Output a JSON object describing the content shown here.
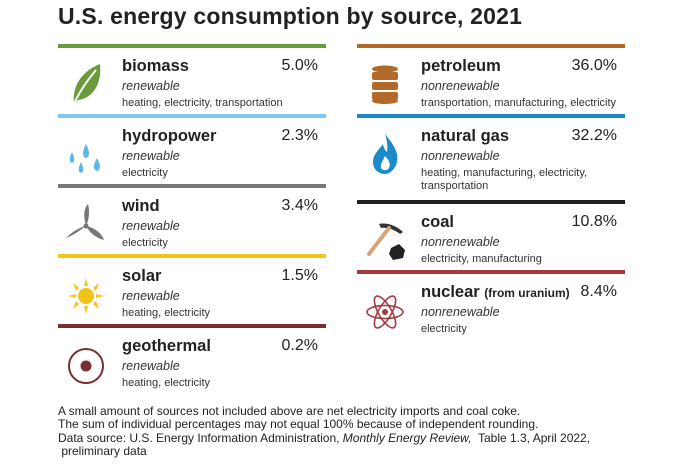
{
  "title": "U.S. energy consumption by source, 2021",
  "left_sources": [
    {
      "name": "biomass",
      "pct": "5.0%",
      "kind": "renewable",
      "uses": "heating, electricity, transportation",
      "color": "#6a9a3a",
      "icon": "leaf-icon"
    },
    {
      "name": "hydropower",
      "pct": "2.3%",
      "kind": "renewable",
      "uses": "electricity",
      "color": "#7fc7ec",
      "icon": "water-drops-icon"
    },
    {
      "name": "wind",
      "pct": "3.4%",
      "kind": "renewable",
      "uses": "electricity",
      "color": "#777777",
      "icon": "wind-turbine-icon"
    },
    {
      "name": "solar",
      "pct": "1.5%",
      "kind": "renewable",
      "uses": "heating, electricity",
      "color": "#f0c419",
      "icon": "sun-icon"
    },
    {
      "name": "geothermal",
      "pct": "0.2%",
      "kind": "renewable",
      "uses": "heating, electricity",
      "color": "#7a2e32",
      "icon": "geothermal-icon"
    }
  ],
  "right_sources": [
    {
      "name": "petroleum",
      "pct": "36.0%",
      "kind": "nonrenewable",
      "uses": "transportation, manufacturing, electricity",
      "color": "#b26a2a",
      "icon": "oil-barrel-icon"
    },
    {
      "name": "natural gas",
      "pct": "32.2%",
      "kind": "nonrenewable",
      "uses": "heating, manufacturing, electricity, transportation",
      "color": "#1a8ac8",
      "icon": "gas-flame-icon"
    },
    {
      "name": "coal",
      "pct": "10.8%",
      "kind": "nonrenewable",
      "uses": "electricity, manufacturing",
      "color": "#222222",
      "icon": "pickaxe-coal-icon"
    },
    {
      "name": "nuclear",
      "name_sub": "(from uranium)",
      "pct": "8.4%",
      "kind": "nonrenewable",
      "uses": "electricity",
      "color": "#a33a40",
      "icon": "atom-icon"
    }
  ],
  "notes": {
    "line1": "A small amount of sources not included above are net electricity imports and coal coke.",
    "line2": "The sum of individual percentages may not equal 100% because of independent rounding.",
    "source_prefix": "Data source: U.S. Energy Information Administration, ",
    "source_title": "Monthly Energy Review,",
    "source_suffix": "  Table 1.3, April 2022,",
    "line4": " preliminary data"
  }
}
